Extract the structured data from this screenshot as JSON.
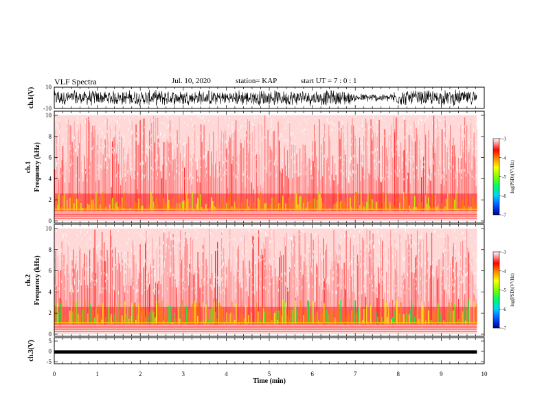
{
  "header": {
    "title": "VLF Spectra",
    "date": "Jul. 10, 2020",
    "station": "station= KAP",
    "start": "start UT =  7 : 0 : 1"
  },
  "colors": {
    "frame": "#000000",
    "background": "#ffffff",
    "colormap": [
      "#000090",
      "#0050ff",
      "#00d0ff",
      "#00ff60",
      "#80ff00",
      "#ffff00",
      "#ff8000",
      "#ff0000",
      "#ffffff"
    ]
  },
  "chart_data": [
    {
      "type": "line",
      "ylabel": "ch.1(V)",
      "ylim": [
        -10,
        10
      ],
      "yticks": [
        "10",
        "-10"
      ],
      "xlim": [
        0,
        10
      ],
      "description_values": {
        "typical_min": -8,
        "typical_max": 8
      }
    },
    {
      "type": "heatmap",
      "ylabel": "ch.1 Frequency (kHz)",
      "ylim": [
        0,
        10
      ],
      "yticks": [
        "0",
        "2",
        "4",
        "6",
        "8",
        "10"
      ],
      "xlim": [
        0,
        10
      ],
      "colorbar": {
        "label": "log(PSD)(V²/Hz)",
        "range": [
          -7,
          -3
        ],
        "ticks": [
          "-3",
          "-4",
          "-5",
          "-6",
          "-7"
        ]
      }
    },
    {
      "type": "heatmap",
      "ylabel": "ch.2 Frequency (kHz)",
      "ylim": [
        0,
        10
      ],
      "yticks": [
        "0",
        "2",
        "4",
        "6",
        "8",
        "10"
      ],
      "xlim": [
        0,
        10
      ],
      "colorbar": {
        "label": "log(PSD)(V²/Hz)",
        "range": [
          -7,
          -3
        ],
        "ticks": [
          "-3",
          "-4",
          "-5",
          "-6",
          "-7"
        ]
      }
    },
    {
      "type": "line",
      "ylabel": "ch.3(V)",
      "ylim": [
        -5,
        5
      ],
      "yticks": [
        "5",
        "0",
        "-5"
      ],
      "xlim": [
        0,
        10
      ],
      "description_values": {
        "level": -0.3
      }
    }
  ],
  "xaxis": {
    "label": "Time (min)",
    "ticks": [
      "0",
      "1",
      "2",
      "3",
      "4",
      "5",
      "6",
      "7",
      "8",
      "9",
      "10"
    ],
    "data_end": 9.83
  }
}
